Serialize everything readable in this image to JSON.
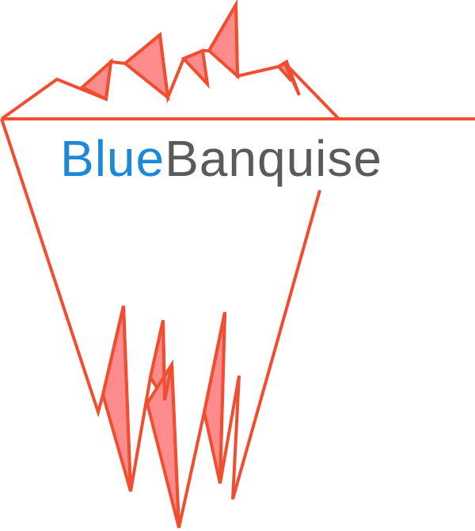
{
  "brand": {
    "name_part1": "Blue",
    "name_part2": "Banquise"
  },
  "colors": {
    "outline": "#F04E30",
    "fill": "#FF8C8C",
    "text_blue": "#1E88D8",
    "text_gray": "#5A5A5A",
    "background": "#FFFFFF"
  },
  "icons": {
    "logo": "iceberg-icon"
  }
}
